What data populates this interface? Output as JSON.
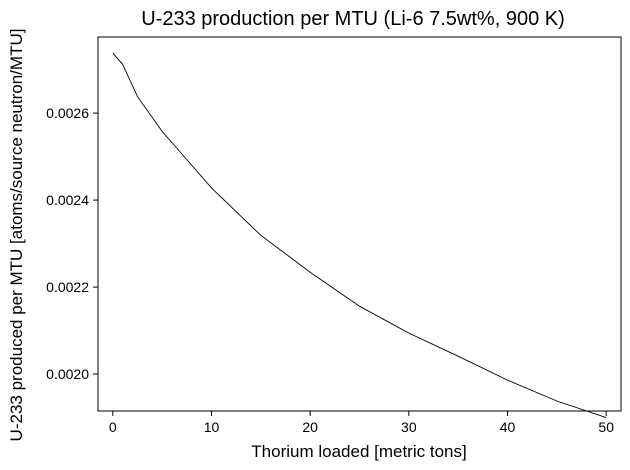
{
  "chart_data": {
    "type": "line",
    "title": "U-233 production per MTU (Li-6 7.5wt%, 900 K)",
    "xlabel": "Thorium loaded [metric tons]",
    "ylabel": "U-233 produced per MTU [atoms/source neutron/MTU]",
    "xlim": [
      -1.5,
      51.5
    ],
    "ylim": [
      0.001915,
      0.002775
    ],
    "xticks": [
      0,
      10,
      20,
      30,
      40,
      50
    ],
    "xtick_labels": [
      "0",
      "10",
      "20",
      "30",
      "40",
      "50"
    ],
    "yticks": [
      0.002,
      0.0022,
      0.0024,
      0.0026
    ],
    "ytick_labels": [
      "0.0020",
      "0.0022",
      "0.0024",
      "0.0026"
    ],
    "grid": false,
    "line_color": "#000000",
    "series": [
      {
        "x": [
          0,
          1,
          2.5,
          5,
          7.5,
          10,
          15,
          20,
          25,
          30,
          35,
          40,
          45,
          50
        ],
        "y": [
          0.002738,
          0.002712,
          0.002638,
          0.002558,
          0.002493,
          0.002428,
          0.002319,
          0.002234,
          0.002156,
          0.002094,
          0.002041,
          0.001986,
          0.001938,
          0.0019
        ]
      }
    ]
  }
}
